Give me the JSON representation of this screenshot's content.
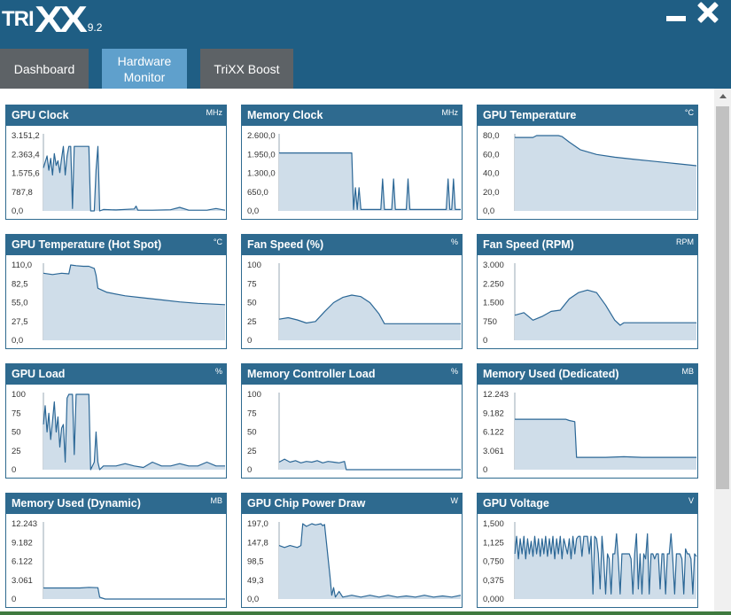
{
  "app": {
    "logo_tri": "TRI",
    "logo_xx": "XX",
    "version": "9.2"
  },
  "tabs": [
    {
      "label": "Dashboard",
      "active": false
    },
    {
      "label": "Hardware\nMonitor",
      "active": true
    },
    {
      "label": "TriXX Boost",
      "active": false
    }
  ],
  "colors": {
    "title_bar": "#1f5e84",
    "card_header": "#2e6a8f",
    "line": "#2b6796",
    "fill": "#cfdde9",
    "tab_active": "#5fa0cc",
    "tab_inactive": "#5d6266"
  },
  "charts": [
    {
      "title": "GPU Clock",
      "unit": "MHz",
      "ticks": [
        "3.151,2",
        "2.363,4",
        "1.575,6",
        "787,8",
        "0,0"
      ],
      "max": 3151.2,
      "points": [
        [
          0,
          1800
        ],
        [
          2,
          2300
        ],
        [
          3,
          1700
        ],
        [
          4,
          2200
        ],
        [
          5,
          1500
        ],
        [
          6,
          2400
        ],
        [
          7,
          1900
        ],
        [
          8,
          2100
        ],
        [
          9,
          1600
        ],
        [
          10,
          2200
        ],
        [
          11,
          2700
        ],
        [
          12,
          1500
        ],
        [
          13,
          2300
        ],
        [
          14,
          2700
        ],
        [
          15,
          2700
        ],
        [
          16,
          100
        ],
        [
          17,
          2700
        ],
        [
          18,
          2700
        ],
        [
          19,
          2700
        ],
        [
          20,
          2700
        ],
        [
          22,
          2700
        ],
        [
          24,
          2700
        ],
        [
          25,
          2700
        ],
        [
          26,
          0
        ],
        [
          28,
          0
        ],
        [
          29,
          1700
        ],
        [
          30,
          2700
        ],
        [
          31,
          0
        ],
        [
          33,
          60
        ],
        [
          40,
          40
        ],
        [
          50,
          80
        ],
        [
          51,
          200
        ],
        [
          52,
          30
        ],
        [
          60,
          30
        ],
        [
          70,
          50
        ],
        [
          75,
          150
        ],
        [
          80,
          30
        ],
        [
          90,
          30
        ],
        [
          95,
          100
        ],
        [
          100,
          30
        ]
      ]
    },
    {
      "title": "Memory Clock",
      "unit": "MHz",
      "ticks": [
        "2.600,0",
        "1.950,0",
        "1.300,0",
        "650,0",
        "0,0"
      ],
      "max": 2600,
      "points": [
        [
          0,
          2000
        ],
        [
          40,
          2000
        ],
        [
          41,
          50
        ],
        [
          42,
          800
        ],
        [
          43,
          50
        ],
        [
          44,
          800
        ],
        [
          45,
          50
        ],
        [
          56,
          50
        ],
        [
          57,
          1100
        ],
        [
          58,
          50
        ],
        [
          62,
          50
        ],
        [
          63,
          1100
        ],
        [
          64,
          50
        ],
        [
          70,
          50
        ],
        [
          71,
          1100
        ],
        [
          72,
          50
        ],
        [
          92,
          50
        ],
        [
          93,
          1100
        ],
        [
          94,
          50
        ],
        [
          95,
          50
        ],
        [
          96,
          1100
        ],
        [
          97,
          50
        ],
        [
          100,
          50
        ]
      ]
    },
    {
      "title": "GPU Temperature",
      "unit": "°C",
      "ticks": [
        "80,0",
        "60,0",
        "40,0",
        "20,0",
        "0,0"
      ],
      "max": 80,
      "points": [
        [
          0,
          78
        ],
        [
          10,
          78
        ],
        [
          12,
          80
        ],
        [
          15,
          81
        ],
        [
          20,
          81
        ],
        [
          24,
          81
        ],
        [
          26,
          79
        ],
        [
          30,
          73
        ],
        [
          36,
          65
        ],
        [
          45,
          60
        ],
        [
          55,
          57
        ],
        [
          65,
          55
        ],
        [
          75,
          53
        ],
        [
          85,
          51
        ],
        [
          100,
          48
        ]
      ]
    },
    {
      "title": "GPU Temperature (Hot Spot)",
      "unit": "°C",
      "ticks": [
        "110,0",
        "82,5",
        "55,0",
        "27,5",
        "0,0"
      ],
      "max": 110,
      "points": [
        [
          0,
          98
        ],
        [
          5,
          96
        ],
        [
          10,
          98
        ],
        [
          14,
          97
        ],
        [
          15,
          110
        ],
        [
          18,
          109
        ],
        [
          22,
          108
        ],
        [
          25,
          108
        ],
        [
          28,
          105
        ],
        [
          29,
          95
        ],
        [
          30,
          76
        ],
        [
          35,
          70
        ],
        [
          45,
          65
        ],
        [
          55,
          62
        ],
        [
          65,
          59
        ],
        [
          75,
          56
        ],
        [
          85,
          54
        ],
        [
          100,
          52
        ]
      ]
    },
    {
      "title": "Fan Speed (%)",
      "unit": "%",
      "ticks": [
        "100",
        "75",
        "50",
        "25",
        "0"
      ],
      "max": 100,
      "points": [
        [
          0,
          28
        ],
        [
          5,
          30
        ],
        [
          10,
          27
        ],
        [
          15,
          23
        ],
        [
          20,
          25
        ],
        [
          25,
          38
        ],
        [
          30,
          50
        ],
        [
          35,
          57
        ],
        [
          40,
          60
        ],
        [
          45,
          58
        ],
        [
          50,
          50
        ],
        [
          55,
          35
        ],
        [
          58,
          22
        ],
        [
          60,
          22
        ],
        [
          100,
          22
        ]
      ]
    },
    {
      "title": "Fan Speed (RPM)",
      "unit": "RPM",
      "ticks": [
        "3.000",
        "2.250",
        "1.500",
        "750",
        "0"
      ],
      "max": 3000,
      "points": [
        [
          0,
          1000
        ],
        [
          5,
          1100
        ],
        [
          10,
          800
        ],
        [
          15,
          950
        ],
        [
          20,
          1150
        ],
        [
          25,
          1200
        ],
        [
          30,
          1650
        ],
        [
          35,
          1900
        ],
        [
          40,
          2000
        ],
        [
          45,
          1900
        ],
        [
          50,
          1400
        ],
        [
          55,
          800
        ],
        [
          58,
          600
        ],
        [
          60,
          700
        ],
        [
          100,
          700
        ]
      ]
    },
    {
      "title": "GPU Load",
      "unit": "%",
      "ticks": [
        "100",
        "75",
        "50",
        "25",
        "0"
      ],
      "max": 100,
      "points": [
        [
          0,
          60
        ],
        [
          1,
          85
        ],
        [
          2,
          50
        ],
        [
          3,
          75
        ],
        [
          4,
          40
        ],
        [
          5,
          65
        ],
        [
          6,
          90
        ],
        [
          7,
          50
        ],
        [
          8,
          70
        ],
        [
          9,
          30
        ],
        [
          10,
          55
        ],
        [
          11,
          60
        ],
        [
          12,
          10
        ],
        [
          13,
          95
        ],
        [
          14,
          100
        ],
        [
          16,
          100
        ],
        [
          17,
          20
        ],
        [
          18,
          100
        ],
        [
          19,
          100
        ],
        [
          20,
          100
        ],
        [
          22,
          100
        ],
        [
          24,
          100
        ],
        [
          25,
          100
        ],
        [
          26,
          0
        ],
        [
          28,
          10
        ],
        [
          29,
          50
        ],
        [
          30,
          10
        ],
        [
          31,
          0
        ],
        [
          33,
          5
        ],
        [
          40,
          5
        ],
        [
          45,
          8
        ],
        [
          50,
          5
        ],
        [
          55,
          3
        ],
        [
          60,
          10
        ],
        [
          65,
          5
        ],
        [
          70,
          5
        ],
        [
          75,
          8
        ],
        [
          80,
          5
        ],
        [
          85,
          5
        ],
        [
          90,
          10
        ],
        [
          95,
          5
        ],
        [
          100,
          5
        ]
      ]
    },
    {
      "title": "Memory Controller Load",
      "unit": "%",
      "ticks": [
        "100",
        "75",
        "50",
        "25",
        "0"
      ],
      "max": 100,
      "points": [
        [
          0,
          10
        ],
        [
          3,
          14
        ],
        [
          6,
          10
        ],
        [
          9,
          12
        ],
        [
          12,
          9
        ],
        [
          15,
          11
        ],
        [
          18,
          10
        ],
        [
          21,
          12
        ],
        [
          24,
          9
        ],
        [
          27,
          11
        ],
        [
          30,
          10
        ],
        [
          33,
          9
        ],
        [
          36,
          11
        ],
        [
          37,
          0
        ],
        [
          100,
          0
        ]
      ]
    },
    {
      "title": "Memory Used (Dedicated)",
      "unit": "MB",
      "ticks": [
        "12.243",
        "9.182",
        "6.122",
        "3.061",
        "0"
      ],
      "max": 12243,
      "points": [
        [
          0,
          8200
        ],
        [
          28,
          8200
        ],
        [
          30,
          8000
        ],
        [
          33,
          7800
        ],
        [
          34,
          2000
        ],
        [
          50,
          2000
        ],
        [
          60,
          2100
        ],
        [
          70,
          2000
        ],
        [
          100,
          2000
        ]
      ]
    },
    {
      "title": "Memory Used (Dynamic)",
      "unit": "MB",
      "ticks": [
        "12.243",
        "9.182",
        "6.122",
        "3.061",
        "0"
      ],
      "max": 12243,
      "points": [
        [
          0,
          1800
        ],
        [
          20,
          1800
        ],
        [
          25,
          1900
        ],
        [
          30,
          1850
        ],
        [
          31,
          300
        ],
        [
          34,
          0
        ],
        [
          100,
          0
        ]
      ]
    },
    {
      "title": "GPU Chip Power Draw",
      "unit": "W",
      "ticks": [
        "197,0",
        "147,8",
        "98,5",
        "49,3",
        "0,0"
      ],
      "max": 197,
      "points": [
        [
          0,
          140
        ],
        [
          3,
          135
        ],
        [
          6,
          140
        ],
        [
          10,
          135
        ],
        [
          12,
          140
        ],
        [
          13,
          197
        ],
        [
          15,
          190
        ],
        [
          18,
          197
        ],
        [
          20,
          194
        ],
        [
          23,
          197
        ],
        [
          24,
          192
        ],
        [
          25,
          195
        ],
        [
          28,
          60
        ],
        [
          29,
          10
        ],
        [
          30,
          30
        ],
        [
          31,
          5
        ],
        [
          33,
          20
        ],
        [
          35,
          5
        ],
        [
          40,
          10
        ],
        [
          45,
          5
        ],
        [
          50,
          10
        ],
        [
          55,
          5
        ],
        [
          60,
          10
        ],
        [
          65,
          5
        ],
        [
          70,
          8
        ],
        [
          75,
          5
        ],
        [
          80,
          10
        ],
        [
          85,
          5
        ],
        [
          90,
          8
        ],
        [
          95,
          5
        ],
        [
          100,
          10
        ]
      ]
    },
    {
      "title": "GPU Voltage",
      "unit": "V",
      "ticks": [
        "1,500",
        "1,125",
        "0,750",
        "0,375",
        "0,000"
      ],
      "max": 1.5,
      "points": [
        [
          0,
          0.9
        ],
        [
          1,
          1.25
        ],
        [
          2,
          0.8
        ],
        [
          3,
          1.2
        ],
        [
          4,
          0.9
        ],
        [
          5,
          1.25
        ],
        [
          6,
          0.8
        ],
        [
          7,
          1.2
        ],
        [
          8,
          0.9
        ],
        [
          9,
          1.15
        ],
        [
          10,
          0.85
        ],
        [
          11,
          1.25
        ],
        [
          12,
          0.9
        ],
        [
          13,
          1.2
        ],
        [
          14,
          0.85
        ],
        [
          15,
          1.2
        ],
        [
          16,
          0.9
        ],
        [
          17,
          1.25
        ],
        [
          18,
          0.85
        ],
        [
          19,
          1.2
        ],
        [
          20,
          0.9
        ],
        [
          21,
          1.25
        ],
        [
          22,
          0.8
        ],
        [
          23,
          1.2
        ],
        [
          24,
          0.9
        ],
        [
          25,
          1.25
        ],
        [
          26,
          0.8
        ],
        [
          27,
          1.2
        ],
        [
          28,
          1.05
        ],
        [
          29,
          0.9
        ],
        [
          30,
          1.2
        ],
        [
          31,
          0.8
        ],
        [
          32,
          1.25
        ],
        [
          33,
          0.9
        ],
        [
          34,
          1.2
        ],
        [
          35,
          1.25
        ],
        [
          36,
          1.25
        ],
        [
          37,
          0.85
        ],
        [
          38,
          1.25
        ],
        [
          39,
          1.25
        ],
        [
          40,
          1.25
        ],
        [
          41,
          0.9
        ],
        [
          42,
          1.25
        ],
        [
          43,
          0.1
        ],
        [
          44,
          1.25
        ],
        [
          45,
          1.2
        ],
        [
          46,
          0.9
        ],
        [
          47,
          0.2
        ],
        [
          48,
          1.25
        ],
        [
          49,
          0.8
        ],
        [
          50,
          0.1
        ],
        [
          51,
          0.9
        ],
        [
          52,
          0.8
        ],
        [
          53,
          0.1
        ],
        [
          54,
          0.9
        ],
        [
          55,
          0.9
        ],
        [
          56,
          1.3
        ],
        [
          57,
          0.8
        ],
        [
          58,
          0.1
        ],
        [
          59,
          0.9
        ],
        [
          60,
          0.9
        ],
        [
          61,
          0.9
        ],
        [
          62,
          0.9
        ],
        [
          63,
          0.9
        ],
        [
          64,
          0.8
        ],
        [
          65,
          0.1
        ],
        [
          66,
          0.9
        ],
        [
          67,
          1.3
        ],
        [
          68,
          0.2
        ],
        [
          69,
          0.9
        ],
        [
          70,
          0.1
        ],
        [
          71,
          0.9
        ],
        [
          72,
          0.8
        ],
        [
          73,
          1.3
        ],
        [
          74,
          0.1
        ],
        [
          75,
          0.9
        ],
        [
          76,
          0.9
        ],
        [
          77,
          0.8
        ],
        [
          78,
          0.9
        ],
        [
          79,
          0.9
        ],
        [
          80,
          0.2
        ],
        [
          81,
          0.9
        ],
        [
          82,
          0.9
        ],
        [
          83,
          0.1
        ],
        [
          84,
          0.9
        ],
        [
          85,
          0.9
        ],
        [
          86,
          1.3
        ],
        [
          87,
          0.8
        ],
        [
          88,
          0.1
        ],
        [
          89,
          0.9
        ],
        [
          90,
          0.9
        ],
        [
          91,
          0.9
        ],
        [
          92,
          0.8
        ],
        [
          93,
          0.1
        ],
        [
          94,
          1.0
        ],
        [
          95,
          0.9
        ],
        [
          96,
          0.9
        ],
        [
          97,
          0.8
        ],
        [
          98,
          0.1
        ],
        [
          99,
          0.9
        ],
        [
          100,
          0.85
        ]
      ]
    }
  ]
}
